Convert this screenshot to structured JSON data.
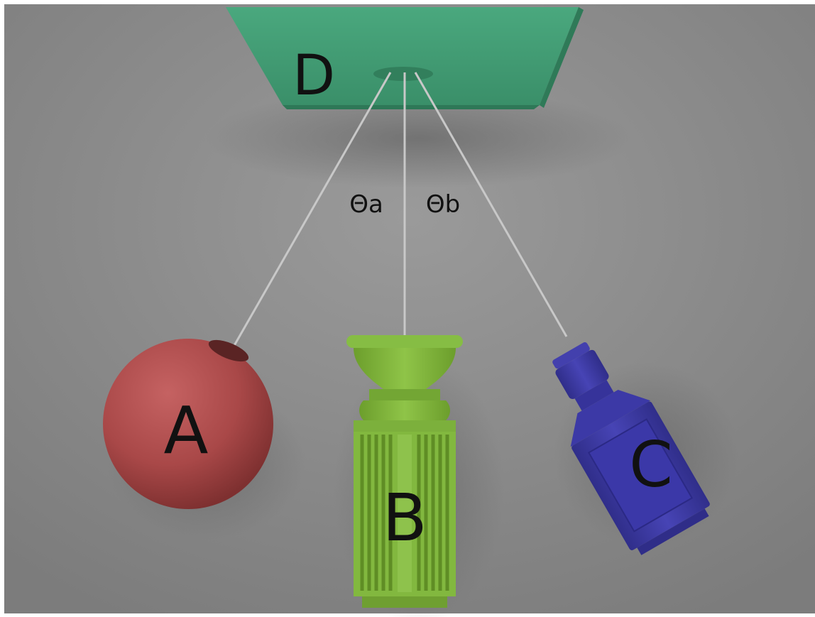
{
  "labels": {
    "support": "D",
    "object_a": "A",
    "object_b": "B",
    "object_c": "C",
    "angle_a": "Θa",
    "angle_b": "Θb"
  },
  "colors": {
    "background": "#8f8f8f",
    "support_plate": "#3f9a72",
    "sphere": "#b04e4e",
    "vase_body": "#7fb43a",
    "bottle": "#3d3aa0",
    "string": "#bdbdbd",
    "label_text": "#111111"
  }
}
